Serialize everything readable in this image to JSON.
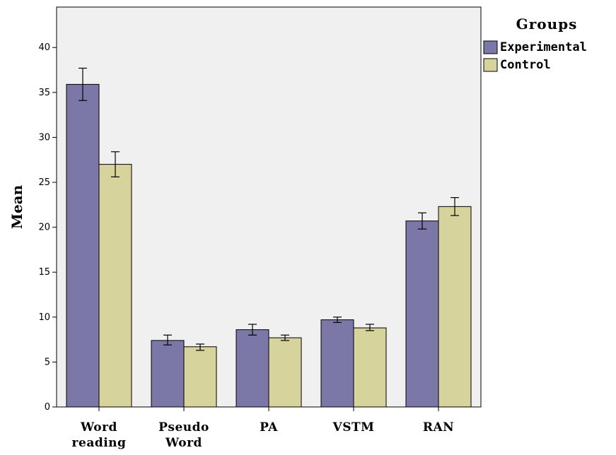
{
  "chart_data": {
    "type": "bar",
    "categories": [
      [
        "Word",
        "reading"
      ],
      [
        "Pseudo",
        "Word"
      ],
      [
        "PA"
      ],
      [
        "VSTM"
      ],
      [
        "RAN"
      ]
    ],
    "series": [
      {
        "name": "Experimental",
        "color": "#7b78a8",
        "values": [
          35.9,
          7.4,
          8.6,
          9.7,
          20.7
        ],
        "error_low": [
          34.1,
          6.9,
          8.0,
          9.4,
          19.8
        ],
        "error_high": [
          37.7,
          8.0,
          9.2,
          10.0,
          21.6
        ]
      },
      {
        "name": "Control",
        "color": "#d6d39d",
        "values": [
          27.0,
          6.7,
          7.7,
          8.8,
          22.3
        ],
        "error_low": [
          25.6,
          6.3,
          7.4,
          8.5,
          21.3
        ],
        "error_high": [
          28.4,
          7.0,
          8.0,
          9.2,
          23.3
        ]
      }
    ],
    "ylabel": "Mean",
    "ylim": [
      0,
      44.5
    ],
    "yticks": [
      0,
      5,
      10,
      15,
      20,
      25,
      30,
      35,
      40
    ],
    "legend": {
      "title": "Groups",
      "placement": "top-right"
    },
    "grid": false,
    "plot_background": "#f0f0f0"
  }
}
